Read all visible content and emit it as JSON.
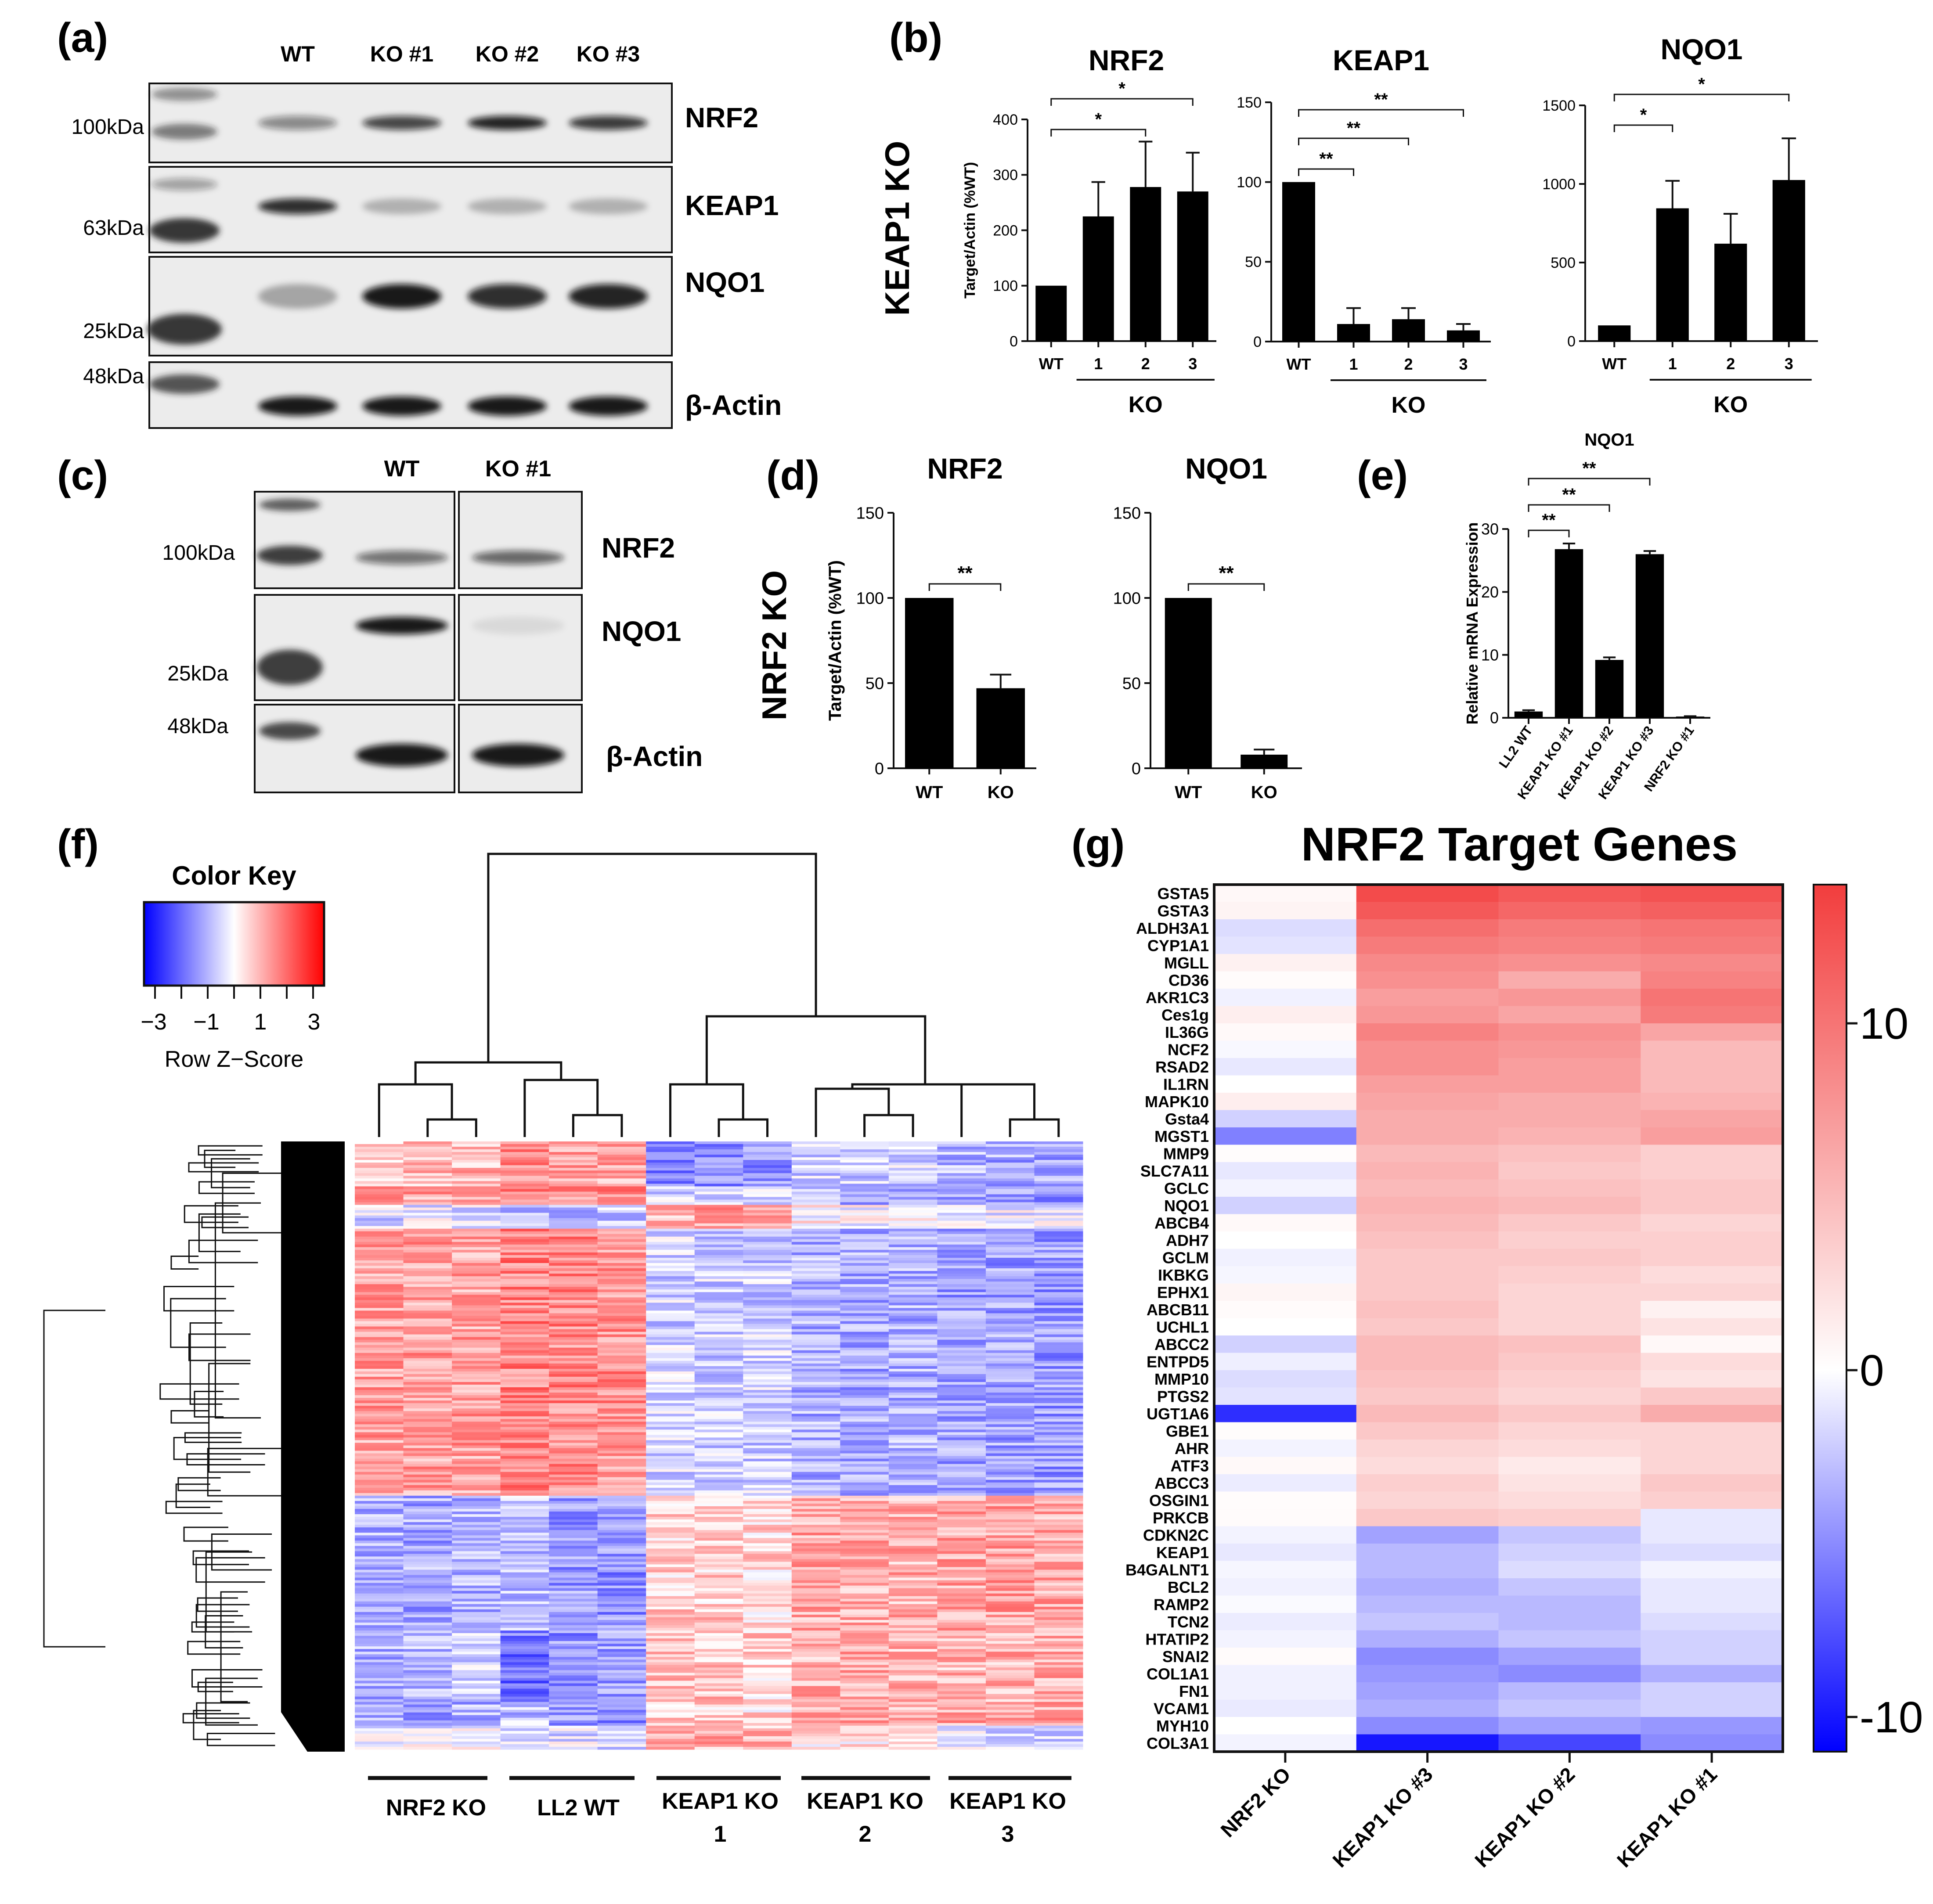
{
  "panel_a": {
    "tag": "(a)",
    "lanes": [
      "WT",
      "KO #1",
      "KO #2",
      "KO #3"
    ],
    "markers": [
      "100kDa",
      "63kDa",
      "25kDa",
      "48kDa"
    ],
    "targets": [
      "NRF2",
      "KEAP1",
      "NQO1",
      "β-Actin"
    ],
    "band_intensity": {
      "NRF2": [
        0.45,
        0.75,
        0.9,
        0.8
      ],
      "KEAP1": [
        0.85,
        0.25,
        0.25,
        0.25
      ],
      "NQO1": [
        0.3,
        0.95,
        0.85,
        0.9
      ],
      "β-Actin": [
        0.95,
        0.95,
        0.95,
        0.95
      ]
    }
  },
  "panel_b": {
    "tag": "(b)",
    "row_label": "KEAP1 KO",
    "ylabel": "Target/Actin  (%WT)",
    "group_label": "KO"
  },
  "panel_c": {
    "tag": "(c)",
    "lanes": [
      "WT",
      "KO #1"
    ],
    "markers": [
      "100kDa",
      "25kDa",
      "48kDa"
    ],
    "targets": [
      "NRF2",
      "NQO1",
      "β-Actin"
    ],
    "band_intensity": {
      "NRF2": [
        0.55,
        0.6
      ],
      "NQO1": [
        0.95,
        0.08
      ],
      "β-Actin": [
        0.95,
        0.95
      ]
    }
  },
  "panel_d": {
    "tag": "(d)",
    "row_label": "NRF2 KO",
    "ylabel": "Target/Actin  (%WT)"
  },
  "panel_e": {
    "tag": "(e)"
  },
  "panel_f": {
    "tag": "(f)",
    "color_key_title": "Color Key",
    "color_key_ticks": [
      "−3",
      "−1",
      "1",
      "3"
    ],
    "color_key_label": "Row Z−Score",
    "group_labels": [
      [
        "NRF2 KO"
      ],
      [
        "LL2 WT"
      ],
      [
        "KEAP1 KO",
        "1"
      ],
      [
        "KEAP1 KO",
        "2"
      ],
      [
        "KEAP1 KO",
        "3"
      ]
    ]
  },
  "panel_g": {
    "tag": "(g)"
  },
  "chart_data": [
    {
      "type": "bar",
      "panel": "b",
      "title": "NRF2",
      "ylabel": "Target/Actin  (%WT)",
      "categories": [
        "WT",
        "1",
        "2",
        "3"
      ],
      "values": [
        100,
        225,
        278,
        270
      ],
      "errors": [
        0,
        62,
        82,
        70
      ],
      "ylim": [
        0,
        400
      ],
      "yticks": [
        "0",
        "100",
        "200",
        "300",
        "400"
      ],
      "significance": [
        {
          "from": 0,
          "to": 2,
          "label": "*"
        },
        {
          "from": 0,
          "to": 3,
          "label": "*"
        }
      ],
      "group_label": "KO"
    },
    {
      "type": "bar",
      "panel": "b",
      "title": "KEAP1",
      "categories": [
        "WT",
        "1",
        "2",
        "3"
      ],
      "values": [
        100,
        11,
        14,
        7
      ],
      "errors": [
        0,
        10,
        7,
        4
      ],
      "ylim": [
        0,
        150
      ],
      "yticks": [
        "0",
        "50",
        "100",
        "150"
      ],
      "significance": [
        {
          "from": 0,
          "to": 1,
          "label": "**"
        },
        {
          "from": 0,
          "to": 2,
          "label": "**"
        },
        {
          "from": 0,
          "to": 3,
          "label": "**"
        }
      ],
      "group_label": "KO"
    },
    {
      "type": "bar",
      "panel": "b",
      "title": "NQO1",
      "categories": [
        "WT",
        "1",
        "2",
        "3"
      ],
      "values": [
        100,
        845,
        620,
        1025
      ],
      "errors": [
        0,
        175,
        190,
        265
      ],
      "ylim": [
        0,
        1500
      ],
      "yticks": [
        "0",
        "500",
        "1000",
        "1500"
      ],
      "significance": [
        {
          "from": 0,
          "to": 1,
          "label": "*"
        },
        {
          "from": 0,
          "to": 3,
          "label": "*"
        }
      ],
      "group_label": "KO"
    },
    {
      "type": "bar",
      "panel": "d",
      "title": "NRF2",
      "ylabel": "Target/Actin  (%WT)",
      "categories": [
        "WT",
        "KO"
      ],
      "values": [
        100,
        47
      ],
      "errors": [
        0,
        8
      ],
      "ylim": [
        0,
        150
      ],
      "yticks": [
        "0",
        "50",
        "100",
        "150"
      ],
      "significance": [
        {
          "from": 0,
          "to": 1,
          "label": "**"
        }
      ]
    },
    {
      "type": "bar",
      "panel": "d",
      "title": "NQO1",
      "categories": [
        "WT",
        "KO"
      ],
      "values": [
        100,
        8
      ],
      "errors": [
        0,
        3
      ],
      "ylim": [
        0,
        150
      ],
      "yticks": [
        "0",
        "50",
        "100",
        "150"
      ],
      "significance": [
        {
          "from": 0,
          "to": 1,
          "label": "**"
        }
      ]
    },
    {
      "type": "bar",
      "panel": "e",
      "title": "NQO1",
      "ylabel": "Relative mRNA Expression",
      "categories": [
        "LL2 WT",
        "KEAP1 KO #1",
        "KEAP1 KO #2",
        "KEAP1 KO #3",
        "NRF2 KO #1"
      ],
      "values": [
        1,
        26.8,
        9.2,
        26,
        0.2
      ],
      "errors": [
        0.2,
        0.9,
        0.4,
        0.5,
        0.05
      ],
      "ylim": [
        0,
        30
      ],
      "yticks": [
        "0",
        "10",
        "20",
        "30"
      ],
      "significance": [
        {
          "from": 0,
          "to": 1,
          "label": "**"
        },
        {
          "from": 0,
          "to": 2,
          "label": "**"
        },
        {
          "from": 0,
          "to": 3,
          "label": "**"
        }
      ]
    },
    {
      "type": "heatmap",
      "panel": "g",
      "title": "NRF2 Target Genes",
      "columns": [
        "NRF2 KO",
        "KEAP1 KO #3",
        "KEAP1 KO #2",
        "KEAP1 KO #1"
      ],
      "rows": [
        "GSTA5",
        "GSTA3",
        "ALDH3A1",
        "CYP1A1",
        "MGLL",
        "CD36",
        "AKR1C3",
        "Ces1g",
        "IL36G",
        "NCF2",
        "RSAD2",
        "IL1RN",
        "MAPK10",
        "Gsta4",
        "MGST1",
        "MMP9",
        "SLC7A11",
        "GCLC",
        "NQO1",
        "ABCB4",
        "ADH7",
        "GCLM",
        "IKBKG",
        "EPHX1",
        "ABCB11",
        "UCHL1",
        "ABCC2",
        "ENTPD5",
        "MMP10",
        "PTGS2",
        "UGT1A6",
        "GBE1",
        "AHR",
        "ATF3",
        "ABCC3",
        "OSGIN1",
        "PRKCB",
        "CDKN2C",
        "KEAP1",
        "B4GALNT1",
        "BCL2",
        "RAMP2",
        "TCN2",
        "HTATIP2",
        "SNAI2",
        "COL1A1",
        "FN1",
        "VCAM1",
        "MYH10",
        "COL3A1"
      ],
      "values": [
        [
          0.5,
          13.0,
          12.0,
          12.5
        ],
        [
          0.8,
          12.0,
          11.0,
          11.5
        ],
        [
          -1.5,
          10.5,
          9.5,
          10.0
        ],
        [
          -1.2,
          9.5,
          9.0,
          9.5
        ],
        [
          1.0,
          8.5,
          8.0,
          8.5
        ],
        [
          0.3,
          8.0,
          6.0,
          9.0
        ],
        [
          -0.6,
          7.0,
          7.5,
          10.0
        ],
        [
          1.2,
          7.5,
          6.5,
          9.5
        ],
        [
          0.4,
          9.0,
          8.0,
          6.5
        ],
        [
          -0.3,
          8.0,
          7.5,
          5.0
        ],
        [
          -1.0,
          8.0,
          7.0,
          5.0
        ],
        [
          0.0,
          7.0,
          7.0,
          5.0
        ],
        [
          1.2,
          6.5,
          6.0,
          5.5
        ],
        [
          -2.0,
          6.0,
          6.0,
          6.5
        ],
        [
          -5.5,
          6.0,
          5.5,
          7.0
        ],
        [
          0.2,
          5.0,
          4.5,
          3.5
        ],
        [
          -1.0,
          5.5,
          4.0,
          3.5
        ],
        [
          -0.5,
          5.0,
          4.5,
          4.0
        ],
        [
          -2.0,
          5.5,
          5.0,
          4.0
        ],
        [
          0.4,
          5.0,
          4.0,
          3.0
        ],
        [
          0.0,
          4.5,
          3.5,
          3.5
        ],
        [
          -0.6,
          4.0,
          4.0,
          3.5
        ],
        [
          -0.4,
          4.0,
          3.5,
          2.5
        ],
        [
          0.7,
          4.0,
          3.0,
          3.0
        ],
        [
          0.3,
          4.5,
          3.0,
          1.0
        ],
        [
          0.0,
          4.0,
          3.0,
          2.0
        ],
        [
          -2.0,
          5.0,
          4.5,
          0.5
        ],
        [
          -0.7,
          5.0,
          4.0,
          2.5
        ],
        [
          -1.5,
          4.5,
          3.5,
          2.0
        ],
        [
          -1.2,
          4.0,
          3.0,
          4.0
        ],
        [
          -9.0,
          5.0,
          4.0,
          6.0
        ],
        [
          0.2,
          4.0,
          3.0,
          3.0
        ],
        [
          -0.5,
          3.0,
          2.5,
          3.0
        ],
        [
          0.4,
          2.5,
          1.5,
          3.0
        ],
        [
          -0.8,
          3.5,
          2.0,
          4.0
        ],
        [
          0.2,
          3.0,
          2.5,
          3.5
        ],
        [
          0.3,
          4.0,
          3.5,
          -1.0
        ],
        [
          -0.5,
          -4.0,
          -2.5,
          -1.0
        ],
        [
          -1.0,
          -3.0,
          -2.0,
          -1.5
        ],
        [
          -0.4,
          -3.0,
          -1.5,
          -0.5
        ],
        [
          -0.6,
          -3.5,
          -2.5,
          -1.0
        ],
        [
          -0.2,
          -3.0,
          -3.0,
          -1.0
        ],
        [
          -0.8,
          -2.5,
          -3.0,
          -1.5
        ],
        [
          -0.5,
          -3.5,
          -2.5,
          -2.0
        ],
        [
          0.3,
          -5.0,
          -4.0,
          -2.0
        ],
        [
          -0.6,
          -4.5,
          -5.0,
          -3.5
        ],
        [
          -0.6,
          -4.0,
          -3.0,
          -2.0
        ],
        [
          -0.9,
          -3.5,
          -2.5,
          -2.0
        ],
        [
          0.0,
          -5.0,
          -4.0,
          -4.5
        ],
        [
          -0.5,
          -10.0,
          -8.0,
          -5.0
        ]
      ],
      "colorbar": {
        "min": -11,
        "max": 14,
        "ticks": [
          "10",
          "0",
          "-10"
        ],
        "tick_values": [
          10,
          0,
          -10
        ]
      }
    }
  ]
}
